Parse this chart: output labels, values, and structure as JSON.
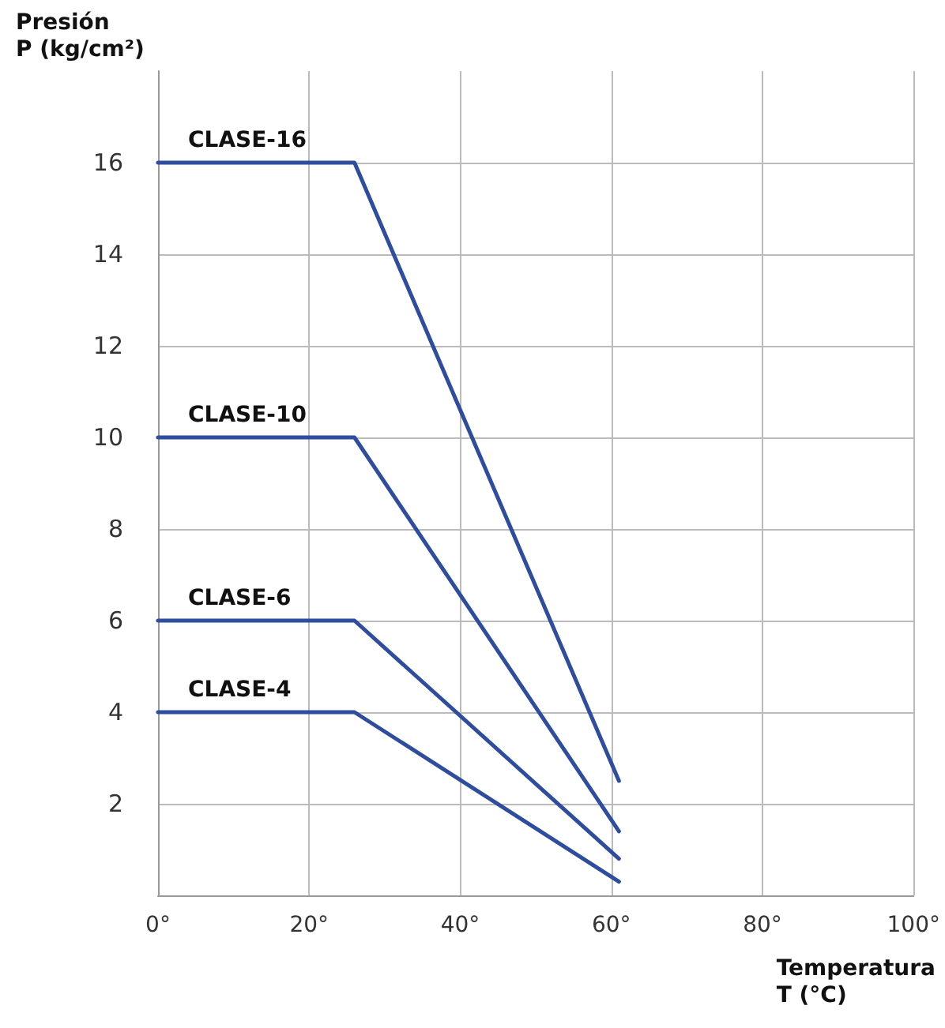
{
  "chart_data": {
    "type": "line",
    "xlabel": "Temperatura\nT (°C)",
    "ylabel": "Presión\nP (kg/cm²)",
    "x": [
      0,
      26,
      61
    ],
    "series": [
      {
        "name": "CLASE-16",
        "color": "#2f4d9e",
        "values": [
          16,
          16,
          2.5
        ]
      },
      {
        "name": "CLASE-10",
        "color": "#2f4d9e",
        "values": [
          10,
          10,
          1.4
        ]
      },
      {
        "name": "CLASE-6",
        "color": "#2f4d9e",
        "values": [
          6,
          6,
          0.8
        ]
      },
      {
        "name": "CLASE-4",
        "color": "#2f4d9e",
        "values": [
          4,
          4,
          0.3
        ]
      }
    ],
    "xlim": [
      0,
      100
    ],
    "xticks": [
      {
        "value": 0,
        "label": "0°"
      },
      {
        "value": 20,
        "label": "20°"
      },
      {
        "value": 40,
        "label": "40°"
      },
      {
        "value": 60,
        "label": "60°"
      },
      {
        "value": 80,
        "label": "80°"
      },
      {
        "value": 100,
        "label": "100°"
      }
    ],
    "ylim": [
      0,
      18
    ],
    "yticks": [
      2,
      4,
      6,
      8,
      10,
      12,
      14,
      16
    ],
    "grid": true,
    "legend": false,
    "marker": "none",
    "line_style": "solid"
  }
}
